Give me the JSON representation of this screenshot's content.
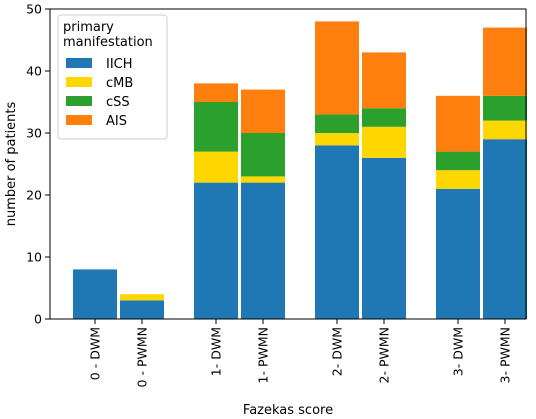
{
  "chart_data": {
    "type": "bar",
    "stacked": true,
    "xlabel": "Fazekas score",
    "ylabel": "number of patients",
    "ylim": [
      0,
      50
    ],
    "yticks": [
      0,
      10,
      20,
      30,
      40,
      50
    ],
    "categories": [
      "0 - DWM",
      "0 - PWMN",
      "1- DWM",
      "1- PWMN",
      "2- DWM",
      "2- PWMN",
      "3- DWM",
      "3- PWMN"
    ],
    "groups": [
      [
        0,
        1
      ],
      [
        2,
        3
      ],
      [
        4,
        5
      ],
      [
        6,
        7
      ]
    ],
    "series": [
      {
        "name": "IICH",
        "color": "#1f77b4",
        "values": [
          8,
          3,
          22,
          22,
          28,
          26,
          21,
          29
        ]
      },
      {
        "name": "cMB",
        "color": "#ffd700",
        "values": [
          0,
          1,
          5,
          1,
          2,
          5,
          3,
          3
        ]
      },
      {
        "name": "cSS",
        "color": "#2ca02c",
        "values": [
          0,
          0,
          8,
          7,
          3,
          3,
          3,
          4
        ]
      },
      {
        "name": "AIS",
        "color": "#ff7f0e",
        "values": [
          0,
          0,
          3,
          7,
          15,
          9,
          9,
          11
        ]
      }
    ],
    "legend": {
      "title_lines": [
        "primary",
        "manifestation"
      ],
      "position": "top-left"
    },
    "grid": false
  }
}
